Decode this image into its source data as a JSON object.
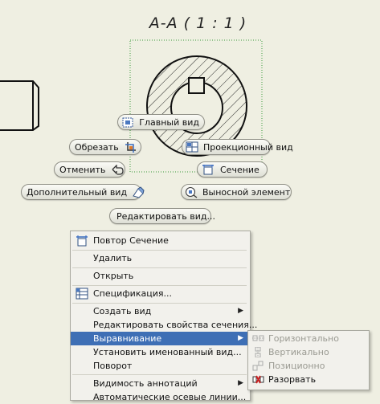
{
  "view_title": "А-А ( 1 : 1 )",
  "marking_menu": {
    "main_view": "Главный вид",
    "crop": "Обрезать",
    "projected_view": "Проекционный вид",
    "undo": "Отменить",
    "section": "Сечение",
    "auxiliary_view": "Дополнительный вид",
    "detail_element": "Выносной элемент",
    "edit_view": "Редактировать вид..."
  },
  "context_menu": {
    "items": [
      {
        "label": "Повтор Сечение",
        "icon": "section-view-icon"
      },
      {
        "label": "Удалить"
      },
      {
        "label": "Открыть"
      },
      {
        "label": "Спецификация...",
        "icon": "parts-list-icon"
      },
      {
        "label": "Создать вид",
        "submenu": true
      },
      {
        "label": "Редактировать свойства сечения..."
      },
      {
        "label": "Выравнивание",
        "submenu": true,
        "highlighted": true
      },
      {
        "label": "Установить именованный вид..."
      },
      {
        "label": "Поворот"
      },
      {
        "label": "Видимость аннотаций",
        "submenu": true
      },
      {
        "label": "Автоматические осевые линии..."
      }
    ]
  },
  "alignment_submenu": {
    "items": [
      {
        "label": "Горизонтально",
        "enabled": false,
        "icon": "horizontal-align-icon"
      },
      {
        "label": "Вертикально",
        "enabled": false,
        "icon": "vertical-align-icon"
      },
      {
        "label": "Позиционно",
        "enabled": false,
        "icon": "in-position-icon"
      },
      {
        "label": "Разорвать",
        "enabled": true,
        "icon": "break-alignment-icon"
      }
    ]
  },
  "colors": {
    "background": "#efefe2",
    "highlight": "#3e6fb5",
    "selection_frame": "#3a9a3a",
    "break_icon": "#cc2222"
  }
}
